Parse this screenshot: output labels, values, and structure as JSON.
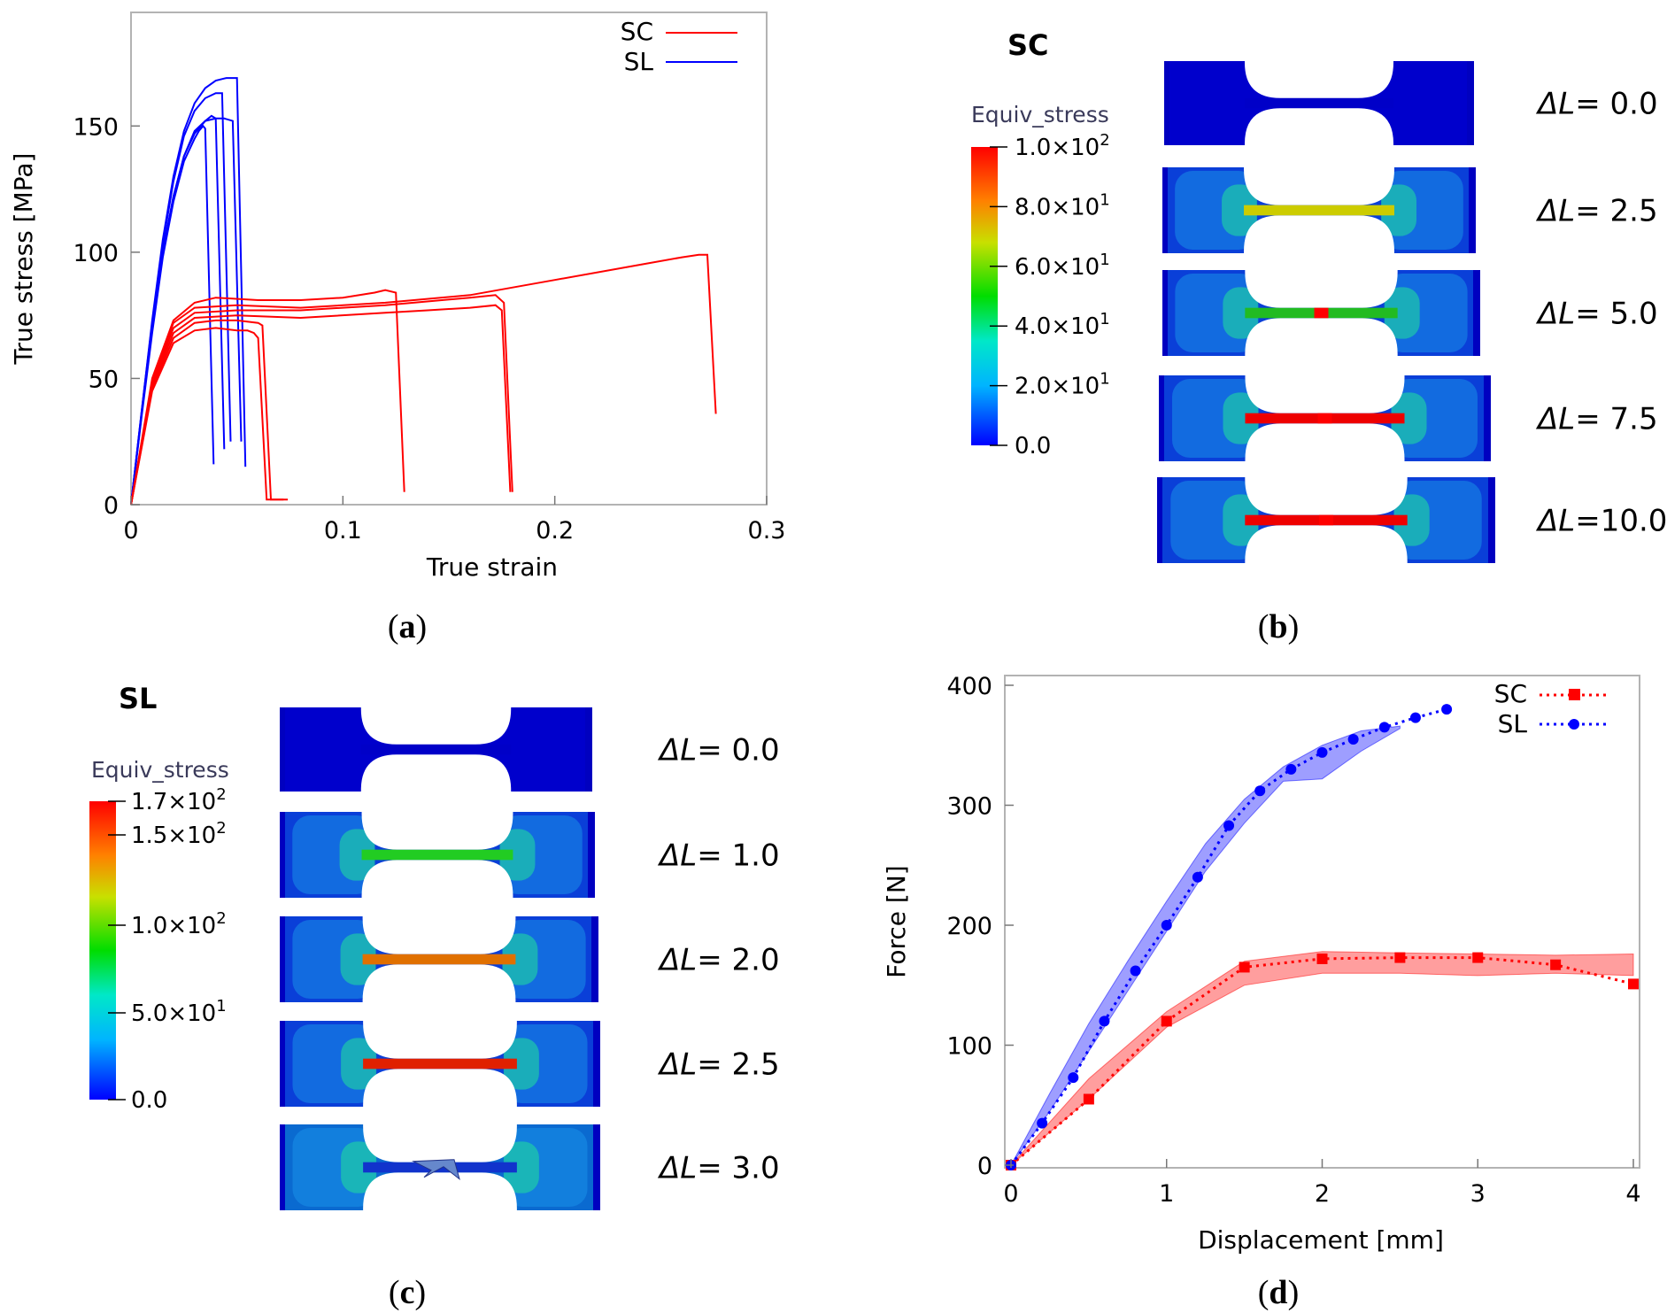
{
  "panels": {
    "a": {
      "caption": "a",
      "chart_data": {
        "type": "line",
        "xlabel": "True strain",
        "ylabel": "True stress [MPa]",
        "xlim": [
          0,
          0.3
        ],
        "ylim": [
          0,
          195
        ],
        "xticks": [
          "0",
          "0.1",
          "0.2",
          "0.3"
        ],
        "yticks": [
          "0",
          "50",
          "100",
          "150"
        ],
        "legend": [
          "SC",
          "SL"
        ],
        "colors": {
          "SC": "#ff0000",
          "SL": "#0000ff"
        },
        "series": [
          {
            "name": "SL",
            "x": [
              0,
              0.005,
              0.01,
              0.015,
              0.02,
              0.025,
              0.03,
              0.032,
              0.034,
              0.035
            ],
            "y": [
              0,
              35,
              68,
              98,
              120,
              136,
              145,
              148,
              150,
              149
            ]
          },
          {
            "name": "SL",
            "x": [
              0,
              0.005,
              0.01,
              0.015,
              0.02,
              0.025,
              0.03,
              0.035,
              0.038,
              0.04
            ],
            "y": [
              0,
              36,
              70,
              100,
              122,
              138,
              148,
              152,
              154,
              153
            ]
          },
          {
            "name": "SL",
            "x": [
              0,
              0.005,
              0.01,
              0.015,
              0.02,
              0.025,
              0.03,
              0.035,
              0.04,
              0.044,
              0.048
            ],
            "y": [
              0,
              36,
              70,
              100,
              122,
              138,
              147,
              152,
              153,
              153,
              152
            ]
          },
          {
            "name": "SL",
            "x": [
              0,
              0.005,
              0.01,
              0.015,
              0.02,
              0.025,
              0.03,
              0.035,
              0.04,
              0.043
            ],
            "y": [
              0,
              37,
              72,
              103,
              128,
              146,
              156,
              161,
              163,
              163
            ]
          },
          {
            "name": "SL",
            "x": [
              0,
              0.005,
              0.01,
              0.015,
              0.02,
              0.025,
              0.03,
              0.035,
              0.04,
              0.045,
              0.05
            ],
            "y": [
              0,
              37,
              73,
              105,
              130,
              148,
              159,
              165,
              168,
              169,
              169
            ]
          },
          {
            "name": "SC",
            "x": [
              0,
              0.01,
              0.02,
              0.03,
              0.04,
              0.05,
              0.055,
              0.058,
              0.06
            ],
            "y": [
              0,
              45,
              64,
              69,
              70,
              69,
              69,
              68,
              66
            ]
          },
          {
            "name": "SC",
            "x": [
              0,
              0.01,
              0.02,
              0.03,
              0.04,
              0.05,
              0.06,
              0.062
            ],
            "y": [
              0,
              46,
              66,
              72,
              73,
              73,
              72,
              71
            ]
          },
          {
            "name": "SC",
            "x": [
              0,
              0.01,
              0.02,
              0.03,
              0.05,
              0.08,
              0.12,
              0.14,
              0.16,
              0.172,
              0.175
            ],
            "y": [
              0,
              47,
              68,
              74,
              75,
              74,
              76,
              77,
              78,
              79,
              77
            ]
          },
          {
            "name": "SC",
            "x": [
              0,
              0.01,
              0.02,
              0.03,
              0.05,
              0.08,
              0.12,
              0.16,
              0.172,
              0.176
            ],
            "y": [
              0,
              48,
              70,
              76,
              77,
              77,
              79,
              82,
              83,
              80
            ]
          },
          {
            "name": "SC",
            "x": [
              0,
              0.01,
              0.02,
              0.03,
              0.04,
              0.06,
              0.08,
              0.1,
              0.115,
              0.12,
              0.125
            ],
            "y": [
              0,
              50,
              73,
              80,
              82,
              81,
              81,
              82,
              84,
              85,
              84
            ]
          },
          {
            "name": "SC",
            "x": [
              0,
              0.01,
              0.02,
              0.03,
              0.05,
              0.08,
              0.12,
              0.16,
              0.2,
              0.24,
              0.26,
              0.268,
              0.272
            ],
            "y": [
              0,
              49,
              72,
              78,
              79,
              78,
              80,
              83,
              89,
              95,
              98,
              99,
              99
            ]
          }
        ]
      }
    },
    "b": {
      "caption": "b",
      "title": "SC",
      "colorbar": {
        "title": "Equiv_stress",
        "ticks": [
          {
            "m": "1.0×10",
            "e": "2"
          },
          {
            "m": "8.0×10",
            "e": "1"
          },
          {
            "m": "6.0×10",
            "e": "1"
          },
          {
            "m": "4.0×10",
            "e": "1"
          },
          {
            "m": "2.0×10",
            "e": "1"
          },
          {
            "m": "0.0",
            "e": ""
          }
        ]
      },
      "states": [
        {
          "label": "ΔL",
          "value": "= 0.0",
          "color": "#0000c8"
        },
        {
          "label": "ΔL",
          "value": "= 2.5",
          "color": "#cccc00"
        },
        {
          "label": "ΔL",
          "value": "= 5.0",
          "color": "#22bb22"
        },
        {
          "label": "ΔL",
          "value": "= 7.5",
          "color": "#ee0000"
        },
        {
          "label": "ΔL",
          "value": "=10.0",
          "color": "#ee0000"
        }
      ]
    },
    "c": {
      "caption": "c",
      "title": "SL",
      "colorbar": {
        "title": "Equiv_stress",
        "ticks": [
          {
            "m": "1.7×10",
            "e": "2"
          },
          {
            "m": "1.5×10",
            "e": "2"
          },
          {
            "m": "1.0×10",
            "e": "2"
          },
          {
            "m": "5.0×10",
            "e": "1"
          },
          {
            "m": "0.0",
            "e": ""
          }
        ]
      },
      "states": [
        {
          "label": "ΔL",
          "value": "= 0.0",
          "color": "#0000c8"
        },
        {
          "label": "ΔL",
          "value": "= 1.0",
          "color": "#22cc22"
        },
        {
          "label": "ΔL",
          "value": "= 2.0",
          "color": "#e07000"
        },
        {
          "label": "ΔL",
          "value": "= 2.5",
          "color": "#e02000"
        },
        {
          "label": "ΔL",
          "value": "= 3.0",
          "color": "#1133cc"
        }
      ]
    },
    "d": {
      "caption": "d",
      "chart_data": {
        "type": "line",
        "xlabel": "Displacement [mm]",
        "ylabel": "Force [N]",
        "xlim": [
          0,
          4
        ],
        "ylim": [
          0,
          400
        ],
        "xticks": [
          "0",
          "1",
          "2",
          "3",
          "4"
        ],
        "yticks": [
          "0",
          "100",
          "200",
          "300",
          "400"
        ],
        "legend": [
          "SC",
          "SL"
        ],
        "colors": {
          "SC": "#ff0000",
          "SL": "#0000ff"
        },
        "series": [
          {
            "name": "SC",
            "marker": "square",
            "x": [
              0,
              0.5,
              1,
              1.5,
              2,
              2.5,
              3,
              3.5,
              4
            ],
            "y": [
              0,
              55,
              120,
              165,
              172,
              173,
              173,
              167,
              151
            ]
          },
          {
            "name": "SL",
            "marker": "circle",
            "x": [
              0,
              0.2,
              0.4,
              0.6,
              0.8,
              1.0,
              1.2,
              1.4,
              1.6,
              1.8,
              2.0,
              2.2,
              2.4,
              2.6,
              2.8
            ],
            "y": [
              0,
              35,
              73,
              120,
              162,
              200,
              240,
              283,
              312,
              330,
              344,
              355,
              365,
              373,
              380
            ]
          }
        ],
        "bands": [
          {
            "name": "SC",
            "x": [
              0,
              0.5,
              1,
              1.5,
              2,
              2.5,
              3,
              3.5,
              4
            ],
            "lower": [
              0,
              55,
              115,
              150,
              160,
              160,
              158,
              160,
              158
            ],
            "upper": [
              0,
              72,
              128,
              170,
              178,
              177,
              176,
              175,
              176
            ]
          },
          {
            "name": "SL",
            "x": [
              0,
              0.25,
              0.5,
              0.75,
              1.0,
              1.25,
              1.5,
              1.75,
              2.0,
              2.25,
              2.5
            ],
            "lower": [
              0,
              45,
              95,
              145,
              195,
              245,
              285,
              320,
              322,
              345,
              364
            ],
            "upper": [
              0,
              60,
              118,
              170,
              220,
              268,
              305,
              332,
              350,
              362,
              366
            ]
          }
        ]
      }
    }
  }
}
